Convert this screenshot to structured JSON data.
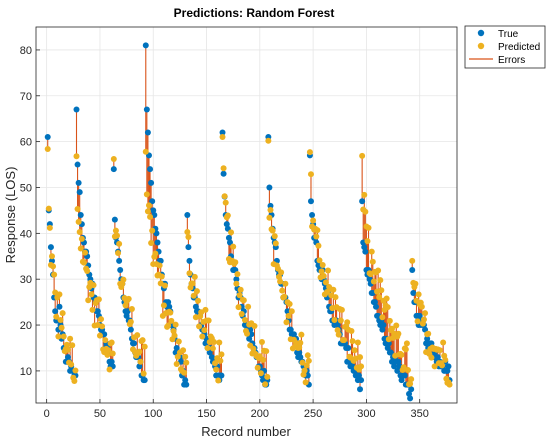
{
  "chart_data": {
    "type": "scatter",
    "title": "Predictions: Random Forest",
    "xlabel": "Record number",
    "ylabel": "Response (LOS)",
    "xlim": [
      -10,
      385
    ],
    "ylim": [
      3,
      85
    ],
    "xticks": [
      0,
      50,
      100,
      150,
      200,
      250,
      300,
      350
    ],
    "yticks": [
      10,
      20,
      30,
      40,
      50,
      60,
      70,
      80
    ],
    "grid": true,
    "legend_position": "top-right-outside",
    "legend": {
      "true_label": "True",
      "predicted_label": "Predicted",
      "errors_label": "Errors"
    },
    "colors": {
      "true": "#0072BD",
      "predicted": "#EDB120",
      "errors": "#D95319"
    },
    "segments": [
      {
        "x": [
          1,
          11
        ],
        "true": [
          61,
          18
        ],
        "pred": [
          57,
          21
        ]
      },
      {
        "x": [
          12,
          27
        ],
        "true": [
          24,
          8
        ],
        "pred": [
          27,
          11
        ]
      },
      {
        "x": [
          28,
          62
        ],
        "true": [
          67,
          10
        ],
        "pred": [
          55,
          13
        ]
      },
      {
        "x": [
          63,
          92
        ],
        "true": [
          54,
          8
        ],
        "pred": [
          53,
          11
        ]
      },
      {
        "x": [
          93,
          131
        ],
        "true": [
          81,
          6
        ],
        "pred": [
          60,
          10
        ]
      },
      {
        "x": [
          132,
          164
        ],
        "true": [
          44,
          8
        ],
        "pred": [
          43,
          11
        ]
      },
      {
        "x": [
          165,
          207
        ],
        "true": [
          62,
          7
        ],
        "pred": [
          59,
          10
        ]
      },
      {
        "x": [
          208,
          246
        ],
        "true": [
          61,
          7
        ],
        "pred": [
          56,
          10
        ]
      },
      {
        "x": [
          247,
          295
        ],
        "true": [
          57,
          7
        ],
        "pred": [
          57,
          11
        ]
      },
      {
        "x": [
          296,
          342
        ],
        "true": [
          47,
          5
        ],
        "pred": [
          55,
          10
        ]
      },
      {
        "x": [
          343,
          378
        ],
        "true": [
          32,
          9
        ],
        "pred": [
          32,
          11
        ]
      }
    ]
  }
}
